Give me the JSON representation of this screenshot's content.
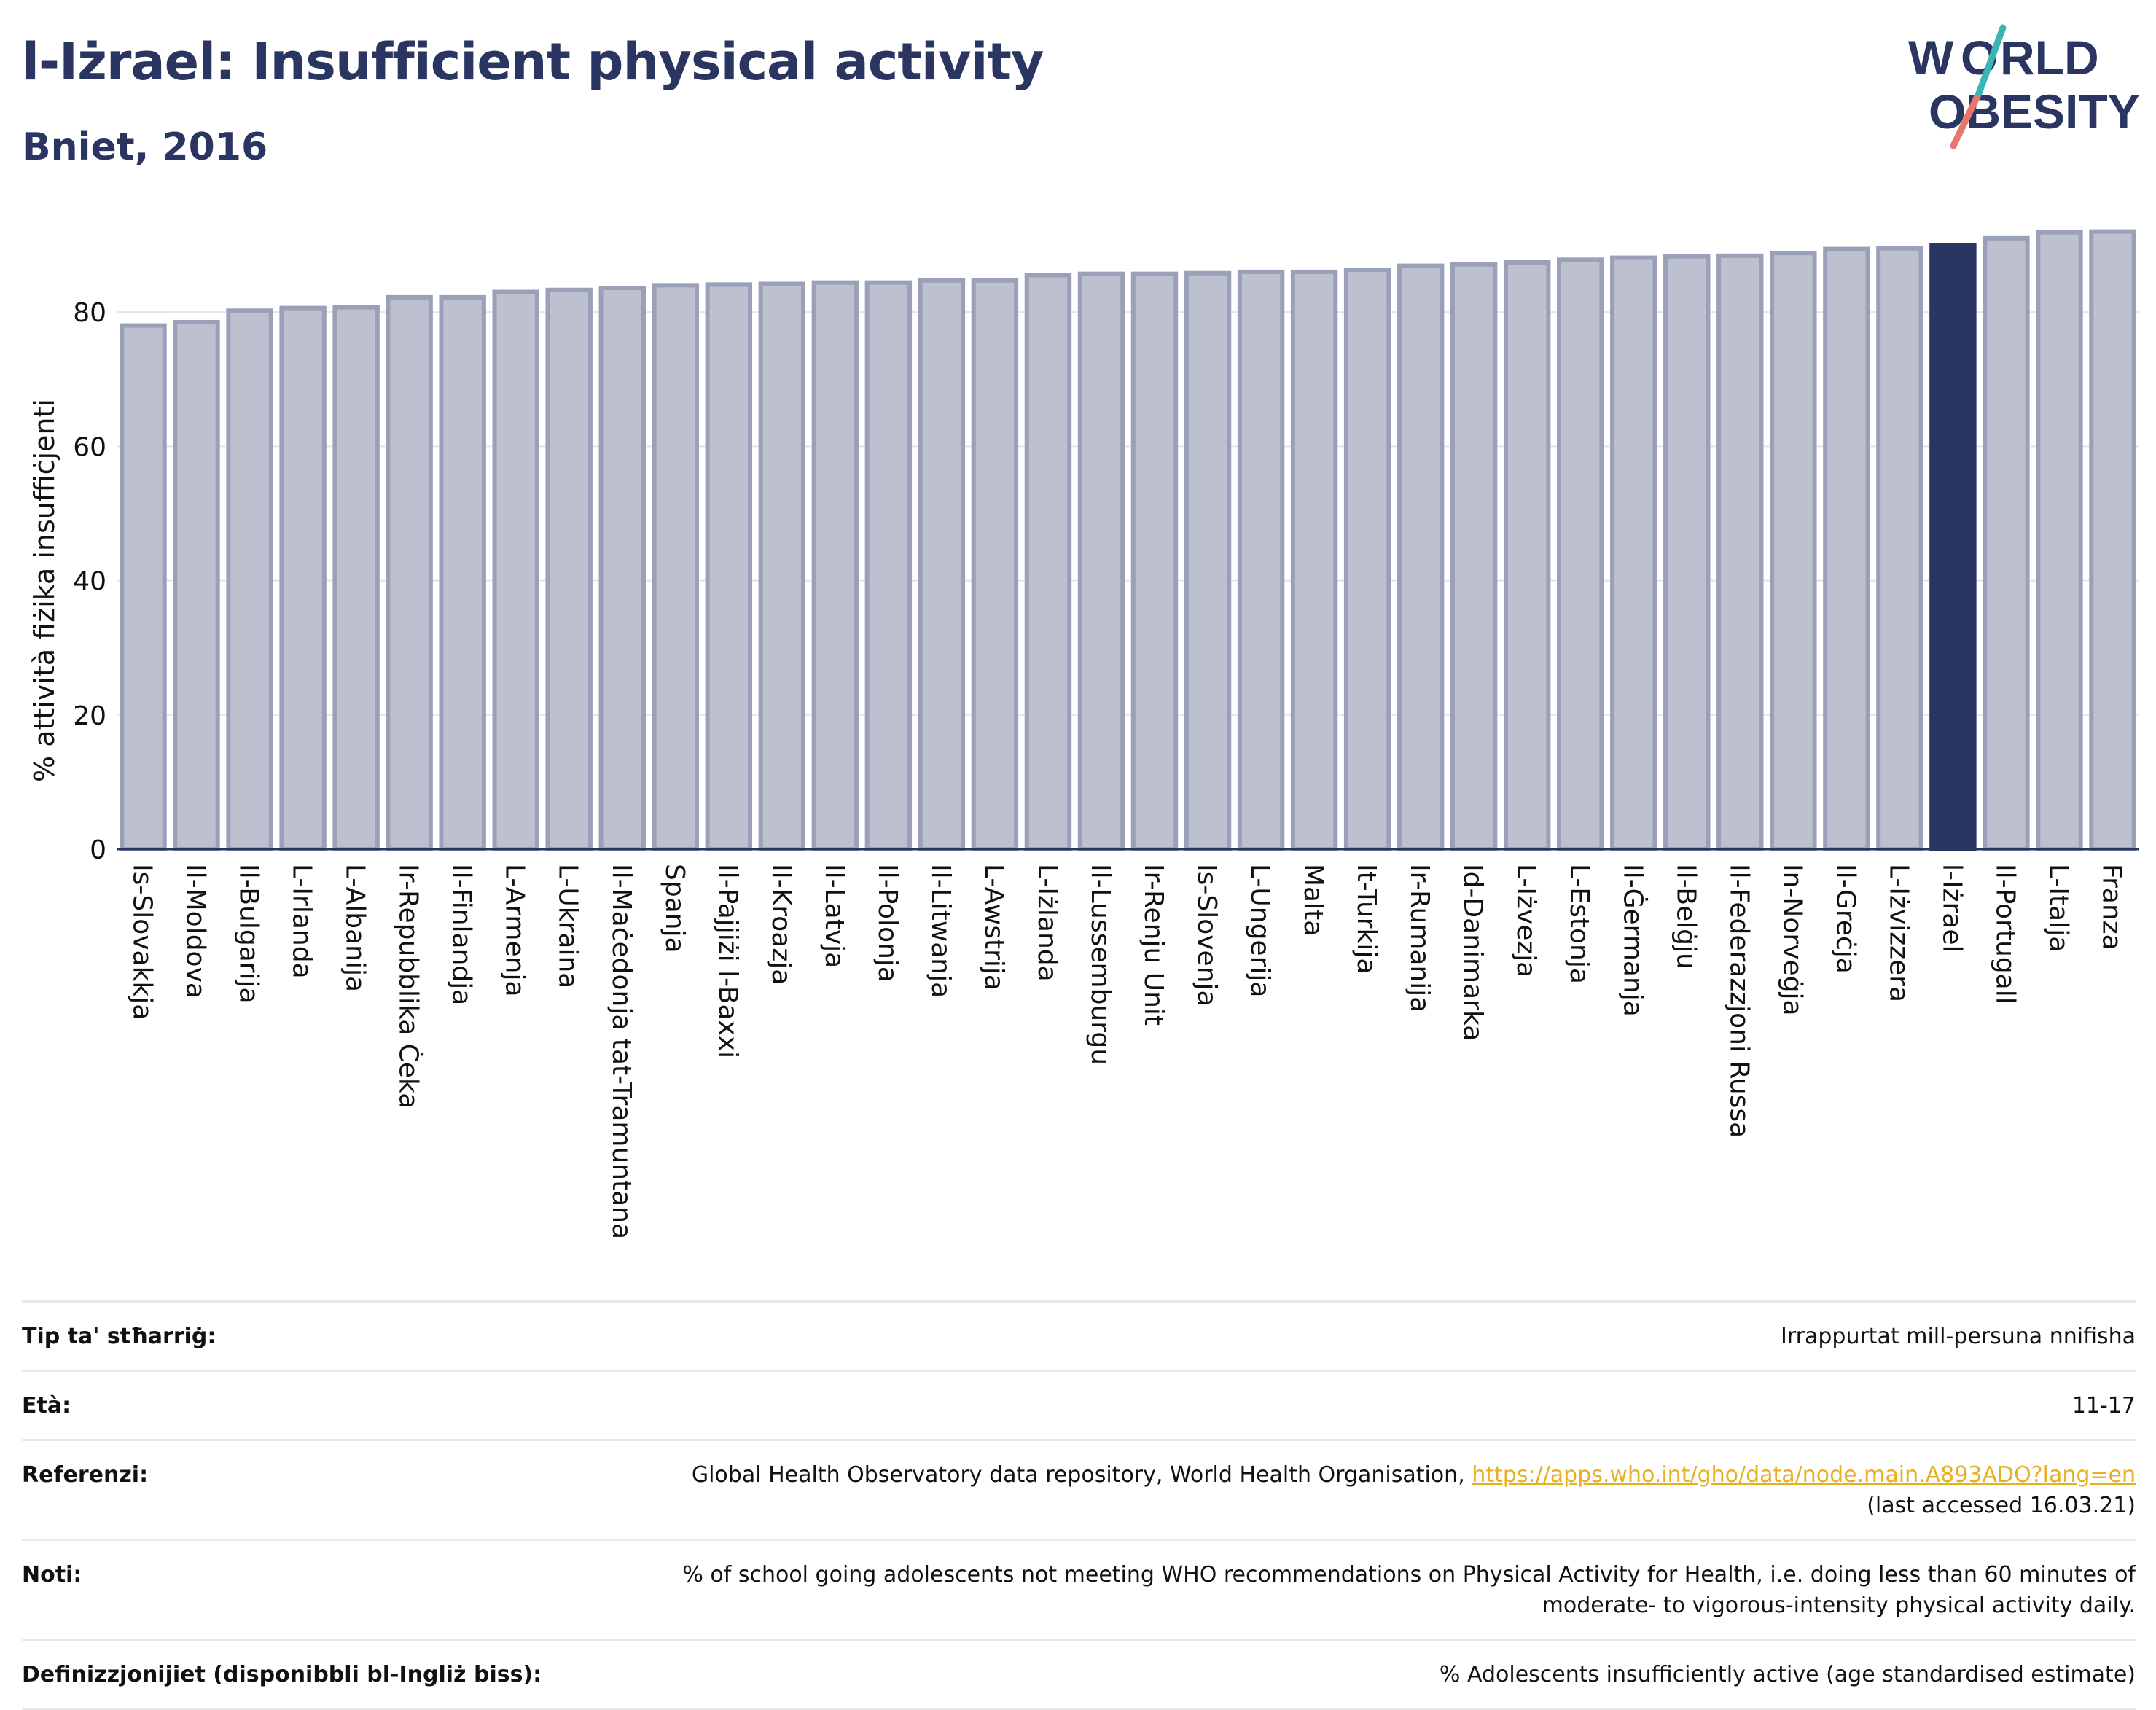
{
  "header": {
    "title": "l-Iżrael: Insufficient physical activity",
    "subtitle": "Bniet, 2016"
  },
  "logo": {
    "line1": "WORLD",
    "line2": "OBESITY"
  },
  "colors": {
    "bar": "#bcc0cf",
    "bar_stroke": "#9aa0b8",
    "highlight": "#2b3561",
    "text": "#2b3561",
    "link": "#e8b020"
  },
  "chart_data": {
    "type": "bar",
    "title": "",
    "ylabel": "% attività fiżika insuffiċjenti",
    "xlabel": "",
    "ylim": [
      0,
      95
    ],
    "yticks": [
      0,
      20,
      40,
      60,
      80
    ],
    "grid": true,
    "highlight": "l-Iżrael",
    "categories": [
      "Is-Slovakkja",
      "Il-Moldova",
      "Il-Bulgarija",
      "L-Irlanda",
      "L-Albanija",
      "Ir-Repubblika Ċeka",
      "Il-Finlandja",
      "L-Armenja",
      "L-Ukraina",
      "Il-Maċedonja tat-Tramuntana",
      "Spanja",
      "Il-Pajjiżi l-Baxxi",
      "Il-Kroazja",
      "Il-Latvja",
      "Il-Polonja",
      "Il-Litwanja",
      "L-Awstrija",
      "L-Iżlanda",
      "Il-Lussemburgu",
      "Ir-Renju Unit",
      "Is-Slovenja",
      "L-Ungerija",
      "Malta",
      "It-Turkija",
      "Ir-Rumanija",
      "Id-Danimarka",
      "L-Iżvezja",
      "L-Estonja",
      "Il-Ġermanja",
      "Il-Belġju",
      "Il-Federazzjoni Russa",
      "In-Norveġja",
      "Il-Greċja",
      "L-Iżvizzera",
      "l-Iżrael",
      "Il-Portugall",
      "L-Italja",
      "Franza"
    ],
    "values": [
      78.0,
      78.5,
      80.2,
      80.6,
      80.7,
      82.2,
      82.2,
      83.0,
      83.3,
      83.6,
      84.0,
      84.1,
      84.2,
      84.4,
      84.4,
      84.7,
      84.7,
      85.5,
      85.7,
      85.7,
      85.8,
      86.0,
      86.0,
      86.3,
      86.9,
      87.1,
      87.4,
      87.8,
      88.1,
      88.3,
      88.4,
      88.8,
      89.4,
      89.5,
      90.0,
      91.0,
      91.9,
      92.0
    ]
  },
  "meta": {
    "rows": [
      {
        "label": "Tip ta' stħarriġ:",
        "value": "Irrappurtat mill-persuna nnifisha"
      },
      {
        "label": "Età:",
        "value": "11-17"
      },
      {
        "label": "Referenzi:",
        "value": "Global Health Observatory data repository, World Health Organisation, ",
        "link": "https://apps.who.int/gho/data/node.main.A893ADO?lang=en",
        "note": "(last accessed 16.03.21)"
      },
      {
        "label": "Noti:",
        "value": "% of school going adolescents not meeting WHO recommendations on Physical Activity for Health, i.e. doing less than 60 minutes of moderate- to vigorous-intensity physical activity daily."
      },
      {
        "label": "Definizzjonijiet (disponibbli bl-Ingliż biss):",
        "value": "% Adolescents insufficiently active (age standardised estimate)"
      }
    ]
  }
}
